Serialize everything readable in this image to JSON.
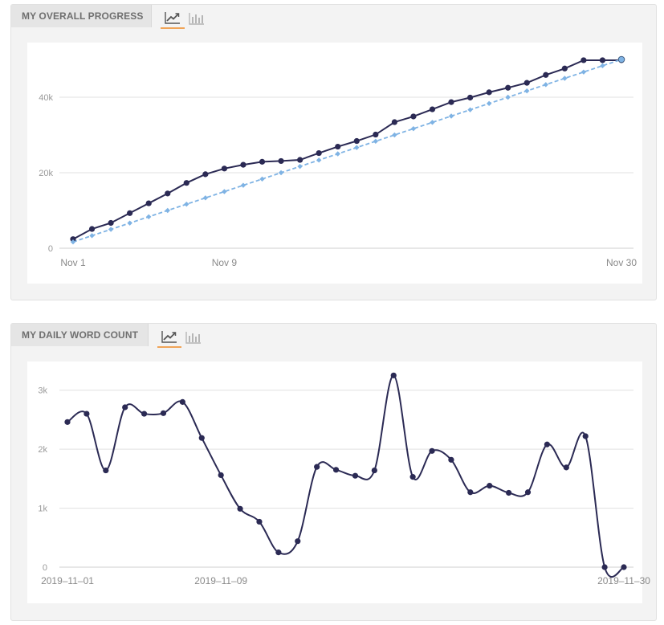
{
  "progress_panel": {
    "title": "MY OVERALL PROGRESS",
    "toggles": [
      {
        "icon": "line-chart-icon",
        "active": true
      },
      {
        "icon": "bar-chart-icon",
        "active": false
      }
    ]
  },
  "daily_panel": {
    "title": "MY DAILY WORD COUNT",
    "toggles": [
      {
        "icon": "line-chart-icon",
        "active": true
      },
      {
        "icon": "bar-chart-icon",
        "active": false
      }
    ]
  },
  "colors": {
    "actual_line": "#2b2a54",
    "goal_line": "#7fb3e4",
    "grid": "#e0e0e0",
    "axis_text": "#999999",
    "active_toggle": "#f0a457"
  },
  "chart_data": [
    {
      "type": "line",
      "title": "MY OVERALL PROGRESS",
      "x_ticks": [
        {
          "day": 1,
          "label": "Nov 1"
        },
        {
          "day": 9,
          "label": "Nov 9"
        },
        {
          "day": 30,
          "label": "Nov 30"
        }
      ],
      "y_ticks": [
        {
          "value": 0,
          "label": "0"
        },
        {
          "value": 20000,
          "label": "20k"
        },
        {
          "value": 40000,
          "label": "40k"
        }
      ],
      "ylim": [
        0,
        50000
      ],
      "grid": true,
      "x": [
        1,
        2,
        3,
        4,
        5,
        6,
        7,
        8,
        9,
        10,
        11,
        12,
        13,
        14,
        15,
        16,
        17,
        18,
        19,
        20,
        21,
        22,
        23,
        24,
        25,
        26,
        27,
        28,
        29,
        30
      ],
      "series": [
        {
          "style": "solid",
          "values": [
            2400,
            5100,
            6700,
            9300,
            11900,
            14500,
            17300,
            19600,
            21100,
            22100,
            22900,
            23100,
            23400,
            25200,
            26900,
            28400,
            30100,
            33400,
            34900,
            36800,
            38700,
            39900,
            41300,
            42500,
            43800,
            45900,
            47600,
            49800,
            49800,
            49800
          ]
        },
        {
          "style": "dashed",
          "values": [
            1667,
            3333,
            5000,
            6667,
            8333,
            10000,
            11667,
            13333,
            15000,
            16667,
            18333,
            20000,
            21667,
            23333,
            25000,
            26667,
            28333,
            30000,
            31667,
            33333,
            35000,
            36667,
            38333,
            40000,
            41667,
            43333,
            45000,
            46667,
            48333,
            50000
          ]
        }
      ]
    },
    {
      "type": "line",
      "title": "MY DAILY WORD COUNT",
      "x_ticks": [
        {
          "day": 1,
          "label": "2019–11–01"
        },
        {
          "day": 9,
          "label": "2019–11–09"
        },
        {
          "day": 30,
          "label": "2019–11–30"
        }
      ],
      "y_ticks": [
        {
          "value": 0,
          "label": "0"
        },
        {
          "value": 1000,
          "label": "1k"
        },
        {
          "value": 2000,
          "label": "2k"
        },
        {
          "value": 3000,
          "label": "3k"
        }
      ],
      "ylim": [
        0,
        3200
      ],
      "grid": true,
      "smooth": true,
      "x": [
        1,
        2,
        3,
        4,
        5,
        6,
        7,
        8,
        9,
        10,
        11,
        12,
        13,
        14,
        15,
        16,
        17,
        18,
        19,
        20,
        21,
        22,
        23,
        24,
        25,
        26,
        27,
        28,
        29,
        30
      ],
      "series": [
        {
          "style": "solid",
          "values": [
            2460,
            2600,
            1640,
            2710,
            2600,
            2610,
            2800,
            2190,
            1560,
            990,
            770,
            250,
            440,
            1700,
            1650,
            1550,
            1640,
            3250,
            1530,
            1970,
            1820,
            1270,
            1380,
            1260,
            1270,
            2080,
            1690,
            2220,
            0,
            0
          ]
        }
      ]
    }
  ]
}
